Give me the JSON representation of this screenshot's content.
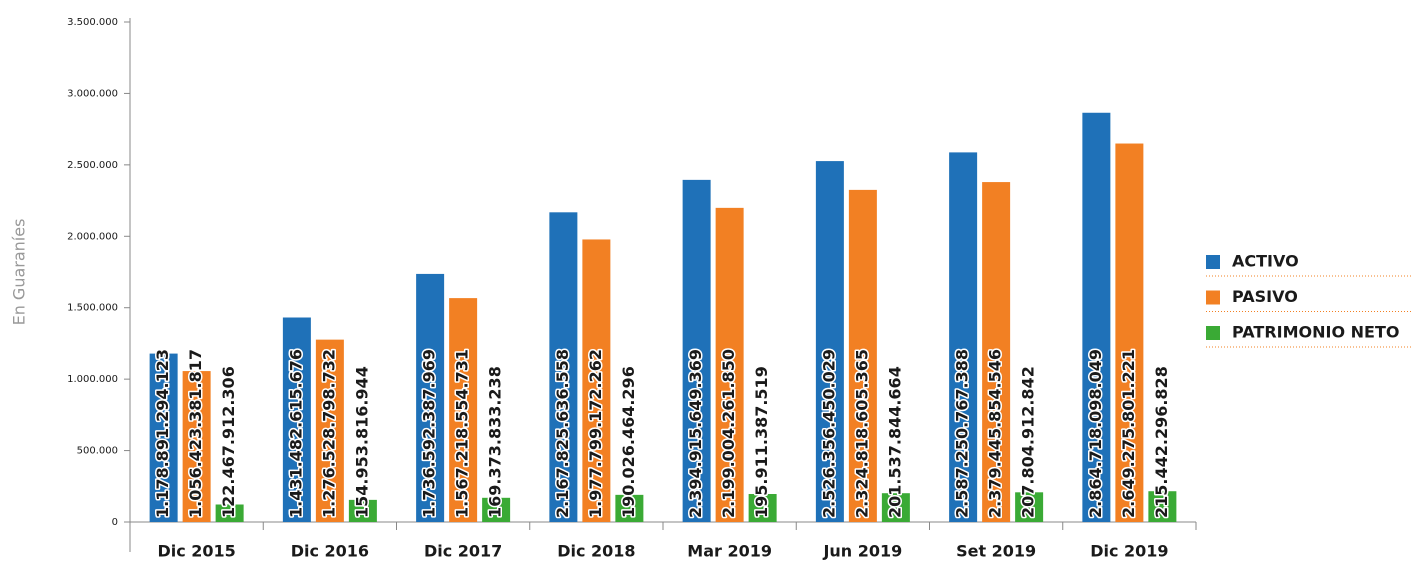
{
  "chart_data": {
    "type": "bar",
    "y_label": "En Guaraníes",
    "categories": [
      "Dic 2015",
      "Dic 2016",
      "Dic 2017",
      "Dic 2018",
      "Mar 2019",
      "Jun 2019",
      "Set 2019",
      "Dic 2019"
    ],
    "series": [
      {
        "name": "ACTIVO",
        "color": "#1f71b8",
        "values": [
          1178891.294123,
          1431482.615676,
          1736592.387969,
          2167825.636558,
          2394915.649369,
          2526356.450029,
          2587250.767388,
          2864718.098049
        ],
        "value_labels": [
          "1.178.891.294.123",
          "1.431.482.615.676",
          "1.736.592.387.969",
          "2.167.825.636.558",
          "2.394.915.649.369",
          "2.526.356.450.029",
          "2.587.250.767.388",
          "2.864.718.098.049"
        ]
      },
      {
        "name": "PASIVO",
        "color": "#f28023",
        "values": [
          1056423.381817,
          1276528.798732,
          1567218.554731,
          1977799.172262,
          2199004.26185,
          2324818.605365,
          2379445.854546,
          2649275.801221
        ],
        "value_labels": [
          "1.056.423.381.817",
          "1.276.528.798.732",
          "1.567.218.554.731",
          "1.977.799.172.262",
          "2.199.004.261.850",
          "2.324.818.605.365",
          "2.379.445.854.546",
          "2.649.275.801.221"
        ]
      },
      {
        "name": "PATRIMONIO NETO",
        "color": "#3aaa35",
        "values": [
          122467.912306,
          154953.816944,
          169373.833238,
          190026.464296,
          195911.387519,
          201537.844664,
          207804.912842,
          215442.296828
        ],
        "value_labels": [
          "122.467.912.306",
          "154.953.816.944",
          "169.373.833.238",
          "190.026.464.296",
          "195.911.387.519",
          "201.537.844.664",
          "207.804.912.842",
          "215.442.296.828"
        ]
      }
    ],
    "ylim": [
      0,
      3500000
    ],
    "yticks": [
      0,
      {
        "value": 500000,
        "label": "500.000"
      },
      {
        "value": 1000000,
        "label": "1.000.000"
      },
      {
        "value": 1500000,
        "label": "1.500.000"
      },
      {
        "value": 2000000,
        "label": "2.000.000"
      },
      {
        "value": 2500000,
        "label": "2.500.000"
      },
      {
        "value": 3000000,
        "label": "3.000.000"
      },
      {
        "value": 3500000,
        "label": "3.500.000"
      }
    ],
    "legend": "right"
  }
}
